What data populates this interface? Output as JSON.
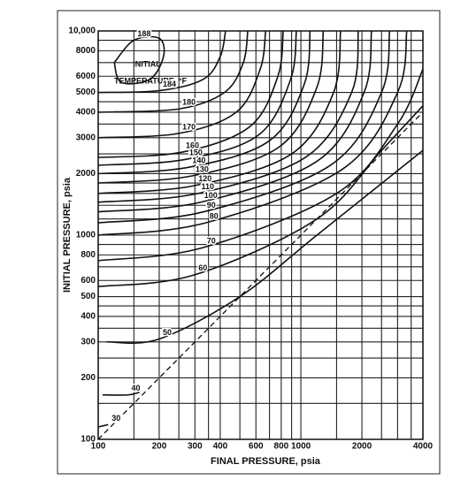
{
  "chart_data": {
    "type": "line",
    "x_label": "FINAL PRESSURE, psia",
    "y_label": "INITIAL PRESSURE, psia",
    "annotations": [
      "INITIAL",
      "TEMPERATURE, °F"
    ],
    "log_x": true,
    "log_y": true,
    "grid": true,
    "xlim": [
      100,
      4000
    ],
    "ylim": [
      100,
      10000
    ],
    "xticks": [
      100,
      200,
      300,
      400,
      600,
      800,
      1000,
      2000,
      4000
    ],
    "yticks": [
      100,
      200,
      300,
      400,
      500,
      600,
      800,
      1000,
      2000,
      3000,
      4000,
      5000,
      6000,
      8000,
      {
        "value": 10000,
        "label": "10,000"
      }
    ],
    "x_minor_grid": [
      150,
      250,
      350,
      500,
      700,
      900,
      1500,
      2500,
      3000,
      3500
    ],
    "y_minor_grid": [
      150,
      250,
      350,
      450,
      700,
      900,
      1200,
      1400,
      1600,
      1800,
      2500,
      3500,
      4500,
      7000,
      9000
    ],
    "equal_pressure_line": {
      "x": [
        100,
        4000
      ],
      "values": [
        100,
        4000
      ]
    },
    "series": [
      {
        "name": "188",
        "color": "#111",
        "x": [
          120,
          150,
          200,
          210,
          180,
          130,
          120
        ],
        "values": [
          7000,
          9000,
          9200,
          7500,
          5800,
          5600,
          7000
        ]
      },
      {
        "name": "184",
        "color": "#111",
        "x": [
          100,
          200,
          330,
          400,
          425
        ],
        "values": [
          5000,
          5100,
          5800,
          7500,
          10000
        ]
      },
      {
        "name": "180",
        "color": "#111",
        "x": [
          100,
          250,
          420,
          520,
          547
        ],
        "values": [
          4000,
          4150,
          5000,
          7000,
          10000
        ]
      },
      {
        "name": "170",
        "color": "#111",
        "x": [
          100,
          250,
          480,
          630,
          670
        ],
        "values": [
          3000,
          3150,
          4000,
          6500,
          10000
        ]
      },
      {
        "name": "160",
        "color": "#111",
        "x": [
          100,
          260,
          560,
          770,
          818
        ],
        "values": [
          2400,
          2550,
          3400,
          6000,
          10000
        ]
      },
      {
        "name": "150",
        "color": "#111",
        "x": [
          100,
          270,
          620,
          890,
          950
        ],
        "values": [
          2200,
          2350,
          3100,
          5800,
          10000
        ]
      },
      {
        "name": "140",
        "color": "#111",
        "x": [
          100,
          280,
          700,
          1040,
          1110
        ],
        "values": [
          2000,
          2150,
          2900,
          5500,
          10000
        ]
      },
      {
        "name": "130",
        "color": "#111",
        "x": [
          100,
          290,
          780,
          1200,
          1290
        ],
        "values": [
          1800,
          1950,
          2700,
          5300,
          10000
        ]
      },
      {
        "name": "120",
        "color": "#111",
        "x": [
          100,
          300,
          900,
          1450,
          1570
        ],
        "values": [
          1600,
          1750,
          2500,
          5000,
          10000
        ]
      },
      {
        "name": "110",
        "color": "#111",
        "x": [
          100,
          310,
          1050,
          1780,
          1920
        ],
        "values": [
          1450,
          1600,
          2400,
          5000,
          10000
        ]
      },
      {
        "name": "100",
        "color": "#111",
        "x": [
          100,
          320,
          1200,
          2050,
          2230
        ],
        "values": [
          1300,
          1450,
          2300,
          5000,
          10000
        ]
      },
      {
        "name": "90",
        "color": "#111",
        "x": [
          100,
          330,
          1400,
          2500,
          2740
        ],
        "values": [
          1150,
          1300,
          2200,
          5000,
          10000
        ]
      },
      {
        "name": "80",
        "color": "#111",
        "x": [
          100,
          340,
          1600,
          3000,
          3330
        ],
        "values": [
          1000,
          1150,
          2100,
          5000,
          10000
        ]
      },
      {
        "name": "70",
        "color": "#111",
        "x": [
          100,
          330,
          1500,
          3000,
          4000
        ],
        "values": [
          750,
          870,
          1600,
          3500,
          6500
        ]
      },
      {
        "name": "60",
        "color": "#111",
        "x": [
          100,
          300,
          1200,
          2500,
          4000
        ],
        "values": [
          560,
          640,
          1200,
          2600,
          4300
        ]
      },
      {
        "name": "50",
        "color": "#111",
        "x": [
          110,
          200,
          500,
          1200,
          4000
        ],
        "values": [
          300,
          310,
          500,
          1000,
          2600
        ]
      },
      {
        "name": "40",
        "color": "#111",
        "x": [
          105,
          140,
          160
        ],
        "values": [
          165,
          165,
          170
        ]
      },
      {
        "name": "30",
        "color": "#111",
        "x": [
          100,
          112
        ],
        "values": [
          115,
          118
        ]
      }
    ]
  }
}
